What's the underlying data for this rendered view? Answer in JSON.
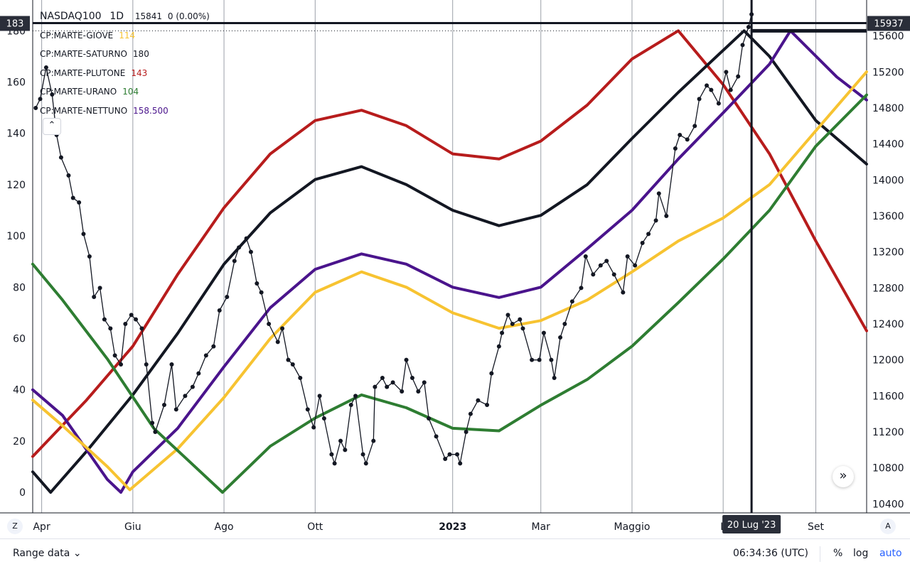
{
  "legend": {
    "symbol": "NASDAQ100",
    "interval": "1D",
    "price": "15841",
    "change": "0 (0.00%)",
    "indicators": [
      {
        "name": "CP:MARTE-GIOVE",
        "value": "114",
        "color": "#f7c331"
      },
      {
        "name": "CP:MARTE-SATURNO",
        "value": "180",
        "color": "#131722"
      },
      {
        "name": "CP:MARTE-PLUTONE",
        "value": "143",
        "color": "#b71c1c"
      },
      {
        "name": "CP:MARTE-URANO",
        "value": "104",
        "color": "#2e7d32"
      },
      {
        "name": "CP:MARTE-NETTUNO",
        "value": "158.500",
        "color": "#4a148c"
      }
    ],
    "collapse_icon": "chevron-up-icon"
  },
  "crosshair": {
    "left_label": "183",
    "right_label": "15937",
    "date_label": "20 Lug '23"
  },
  "bottom_bar": {
    "range_label": "Range data",
    "time": "06:34:36 (UTC)",
    "percent_label": "%",
    "log_label": "log",
    "auto_label": "auto",
    "left_button": "Z",
    "right_button": "A"
  },
  "chart_data": {
    "type": "line",
    "x_axis_labels": [
      "Apr",
      "Giu",
      "Ago",
      "Ott",
      "2023",
      "Mar",
      "Maggio",
      "L",
      "Set"
    ],
    "left_axis": {
      "ticks": [
        0,
        20,
        40,
        60,
        80,
        100,
        120,
        140,
        160,
        180
      ],
      "range": [
        -8,
        192
      ]
    },
    "right_axis": {
      "ticks": [
        10400,
        10800,
        11200,
        11600,
        12000,
        12400,
        12800,
        13200,
        13600,
        14000,
        14400,
        14800,
        15200,
        15600
      ],
      "range": [
        10300,
        16000
      ]
    },
    "x_range": [
      "2022-03-26",
      "2023-10-05"
    ],
    "date_ticks": [
      "2022-04-01",
      "2022-06-01",
      "2022-08-01",
      "2022-10-01",
      "2023-01-01",
      "2023-03-01",
      "2023-05-01",
      "2023-07-01",
      "2023-09-01"
    ],
    "grid": true,
    "series": [
      {
        "name": "CP:MARTE-PLUTONE",
        "axis": "left",
        "color": "#b71c1c",
        "points": [
          [
            "2022-03-26",
            14
          ],
          [
            "2022-05-01",
            36
          ],
          [
            "2022-06-01",
            57
          ],
          [
            "2022-07-01",
            85
          ],
          [
            "2022-08-01",
            111
          ],
          [
            "2022-09-01",
            132
          ],
          [
            "2022-10-01",
            145
          ],
          [
            "2022-11-01",
            149
          ],
          [
            "2022-12-01",
            143
          ],
          [
            "2023-01-01",
            132
          ],
          [
            "2023-02-01",
            130
          ],
          [
            "2023-03-01",
            137
          ],
          [
            "2023-04-01",
            151
          ],
          [
            "2023-05-01",
            169
          ],
          [
            "2023-06-01",
            180
          ],
          [
            "2023-07-01",
            159
          ],
          [
            "2023-08-01",
            132
          ],
          [
            "2023-09-01",
            98
          ],
          [
            "2023-10-05",
            63
          ]
        ]
      },
      {
        "name": "CP:MARTE-SATURNO",
        "axis": "left",
        "color": "#131722",
        "points": [
          [
            "2022-03-26",
            8
          ],
          [
            "2022-04-07",
            0
          ],
          [
            "2022-05-01",
            16
          ],
          [
            "2022-06-01",
            38
          ],
          [
            "2022-07-01",
            62
          ],
          [
            "2022-08-01",
            89
          ],
          [
            "2022-09-01",
            109
          ],
          [
            "2022-10-01",
            122
          ],
          [
            "2022-11-01",
            127
          ],
          [
            "2022-12-01",
            120
          ],
          [
            "2023-01-01",
            110
          ],
          [
            "2023-02-01",
            104
          ],
          [
            "2023-03-01",
            108
          ],
          [
            "2023-04-01",
            120
          ],
          [
            "2023-05-01",
            138
          ],
          [
            "2023-06-01",
            156
          ],
          [
            "2023-07-15",
            180
          ],
          [
            "2023-08-01",
            170
          ],
          [
            "2023-09-01",
            145
          ],
          [
            "2023-10-05",
            128
          ]
        ]
      },
      {
        "name": "CP:MARTE-NETTUNO",
        "axis": "left",
        "color": "#4a148c",
        "points": [
          [
            "2022-03-26",
            40
          ],
          [
            "2022-04-15",
            30
          ],
          [
            "2022-05-15",
            5
          ],
          [
            "2022-05-24",
            0
          ],
          [
            "2022-06-01",
            8
          ],
          [
            "2022-07-01",
            25
          ],
          [
            "2022-08-01",
            49
          ],
          [
            "2022-09-01",
            72
          ],
          [
            "2022-10-01",
            87
          ],
          [
            "2022-11-01",
            93
          ],
          [
            "2022-12-01",
            89
          ],
          [
            "2023-01-01",
            80
          ],
          [
            "2023-02-01",
            76
          ],
          [
            "2023-03-01",
            80
          ],
          [
            "2023-04-01",
            95
          ],
          [
            "2023-05-01",
            110
          ],
          [
            "2023-06-01",
            130
          ],
          [
            "2023-07-01",
            148
          ],
          [
            "2023-08-01",
            167
          ],
          [
            "2023-08-15",
            180
          ],
          [
            "2023-09-15",
            162
          ],
          [
            "2023-10-05",
            153
          ]
        ]
      },
      {
        "name": "CP:MARTE-GIOVE",
        "axis": "left",
        "color": "#f7c331",
        "points": [
          [
            "2022-03-26",
            36
          ],
          [
            "2022-04-15",
            26
          ],
          [
            "2022-05-15",
            10
          ],
          [
            "2022-05-30",
            1
          ],
          [
            "2022-07-01",
            17
          ],
          [
            "2022-08-01",
            37
          ],
          [
            "2022-09-01",
            60
          ],
          [
            "2022-10-01",
            78
          ],
          [
            "2022-11-01",
            86
          ],
          [
            "2022-12-01",
            80
          ],
          [
            "2023-01-01",
            70
          ],
          [
            "2023-02-01",
            64
          ],
          [
            "2023-03-01",
            67
          ],
          [
            "2023-04-01",
            75
          ],
          [
            "2023-05-01",
            86
          ],
          [
            "2023-06-01",
            98
          ],
          [
            "2023-07-01",
            107
          ],
          [
            "2023-08-01",
            120
          ],
          [
            "2023-09-01",
            141
          ],
          [
            "2023-10-05",
            164
          ]
        ]
      },
      {
        "name": "CP:MARTE-URANO",
        "axis": "left",
        "color": "#2e7d32",
        "points": [
          [
            "2022-03-26",
            89
          ],
          [
            "2022-04-15",
            75
          ],
          [
            "2022-05-15",
            52
          ],
          [
            "2022-06-15",
            25
          ],
          [
            "2022-07-31",
            0
          ],
          [
            "2022-09-01",
            18
          ],
          [
            "2022-10-01",
            29
          ],
          [
            "2022-11-01",
            38
          ],
          [
            "2022-12-01",
            33
          ],
          [
            "2023-01-01",
            25
          ],
          [
            "2023-02-01",
            24
          ],
          [
            "2023-03-01",
            34
          ],
          [
            "2023-04-01",
            44
          ],
          [
            "2023-05-01",
            57
          ],
          [
            "2023-06-01",
            74
          ],
          [
            "2023-07-01",
            91
          ],
          [
            "2023-08-01",
            110
          ],
          [
            "2023-09-01",
            135
          ],
          [
            "2023-10-05",
            155
          ]
        ]
      },
      {
        "name": "NASDAQ100",
        "axis": "right",
        "color": "#131722",
        "markers": true,
        "points": [
          [
            "2022-03-28",
            14800
          ],
          [
            "2022-03-31",
            14900
          ],
          [
            "2022-04-04",
            15250
          ],
          [
            "2022-04-08",
            14950
          ],
          [
            "2022-04-11",
            14500
          ],
          [
            "2022-04-14",
            14250
          ],
          [
            "2022-04-19",
            14050
          ],
          [
            "2022-04-22",
            13800
          ],
          [
            "2022-04-26",
            13750
          ],
          [
            "2022-04-29",
            13400
          ],
          [
            "2022-05-03",
            13150
          ],
          [
            "2022-05-06",
            12700
          ],
          [
            "2022-05-10",
            12800
          ],
          [
            "2022-05-13",
            12450
          ],
          [
            "2022-05-17",
            12350
          ],
          [
            "2022-05-20",
            12050
          ],
          [
            "2022-05-24",
            11950
          ],
          [
            "2022-05-27",
            12400
          ],
          [
            "2022-05-31",
            12500
          ],
          [
            "2022-06-03",
            12450
          ],
          [
            "2022-06-07",
            12350
          ],
          [
            "2022-06-10",
            11950
          ],
          [
            "2022-06-14",
            11300
          ],
          [
            "2022-06-16",
            11200
          ],
          [
            "2022-06-22",
            11500
          ],
          [
            "2022-06-27",
            11950
          ],
          [
            "2022-06-30",
            11450
          ],
          [
            "2022-07-06",
            11600
          ],
          [
            "2022-07-11",
            11700
          ],
          [
            "2022-07-15",
            11850
          ],
          [
            "2022-07-20",
            12050
          ],
          [
            "2022-07-25",
            12150
          ],
          [
            "2022-07-29",
            12550
          ],
          [
            "2022-08-03",
            12700
          ],
          [
            "2022-08-08",
            13100
          ],
          [
            "2022-08-11",
            13250
          ],
          [
            "2022-08-16",
            13350
          ],
          [
            "2022-08-19",
            13200
          ],
          [
            "2022-08-23",
            12850
          ],
          [
            "2022-08-26",
            12750
          ],
          [
            "2022-08-31",
            12400
          ],
          [
            "2022-09-06",
            12200
          ],
          [
            "2022-09-09",
            12350
          ],
          [
            "2022-09-13",
            12000
          ],
          [
            "2022-09-16",
            11950
          ],
          [
            "2022-09-21",
            11800
          ],
          [
            "2022-09-26",
            11450
          ],
          [
            "2022-09-30",
            11250
          ],
          [
            "2022-10-04",
            11600
          ],
          [
            "2022-10-07",
            11350
          ],
          [
            "2022-10-12",
            10950
          ],
          [
            "2022-10-14",
            10850
          ],
          [
            "2022-10-18",
            11100
          ],
          [
            "2022-10-21",
            11000
          ],
          [
            "2022-10-25",
            11500
          ],
          [
            "2022-10-28",
            11600
          ],
          [
            "2022-11-02",
            10950
          ],
          [
            "2022-11-04",
            10850
          ],
          [
            "2022-11-09",
            11100
          ],
          [
            "2022-11-10",
            11700
          ],
          [
            "2022-11-15",
            11800
          ],
          [
            "2022-11-18",
            11700
          ],
          [
            "2022-11-22",
            11750
          ],
          [
            "2022-11-28",
            11650
          ],
          [
            "2022-12-01",
            12000
          ],
          [
            "2022-12-05",
            11800
          ],
          [
            "2022-12-09",
            11650
          ],
          [
            "2022-12-13",
            11750
          ],
          [
            "2022-12-16",
            11350
          ],
          [
            "2022-12-21",
            11150
          ],
          [
            "2022-12-27",
            10900
          ],
          [
            "2022-12-30",
            10950
          ],
          [
            "2023-01-04",
            10950
          ],
          [
            "2023-01-06",
            10850
          ],
          [
            "2023-01-10",
            11200
          ],
          [
            "2023-01-13",
            11400
          ],
          [
            "2023-01-18",
            11550
          ],
          [
            "2023-01-24",
            11500
          ],
          [
            "2023-01-27",
            11850
          ],
          [
            "2023-02-01",
            12150
          ],
          [
            "2023-02-03",
            12300
          ],
          [
            "2023-02-07",
            12500
          ],
          [
            "2023-02-10",
            12400
          ],
          [
            "2023-02-15",
            12450
          ],
          [
            "2023-02-17",
            12350
          ],
          [
            "2023-02-23",
            12000
          ],
          [
            "2023-02-28",
            12000
          ],
          [
            "2023-03-03",
            12300
          ],
          [
            "2023-03-08",
            12000
          ],
          [
            "2023-03-10",
            11800
          ],
          [
            "2023-03-14",
            12250
          ],
          [
            "2023-03-17",
            12400
          ],
          [
            "2023-03-22",
            12650
          ],
          [
            "2023-03-28",
            12800
          ],
          [
            "2023-03-31",
            13150
          ],
          [
            "2023-04-05",
            12950
          ],
          [
            "2023-04-10",
            13050
          ],
          [
            "2023-04-14",
            13100
          ],
          [
            "2023-04-19",
            12950
          ],
          [
            "2023-04-25",
            12750
          ],
          [
            "2023-04-28",
            13150
          ],
          [
            "2023-05-03",
            13050
          ],
          [
            "2023-05-08",
            13300
          ],
          [
            "2023-05-12",
            13400
          ],
          [
            "2023-05-17",
            13550
          ],
          [
            "2023-05-19",
            13850
          ],
          [
            "2023-05-24",
            13600
          ],
          [
            "2023-05-30",
            14350
          ],
          [
            "2023-06-02",
            14500
          ],
          [
            "2023-06-07",
            14450
          ],
          [
            "2023-06-12",
            14600
          ],
          [
            "2023-06-15",
            14900
          ],
          [
            "2023-06-20",
            15050
          ],
          [
            "2023-06-23",
            15000
          ],
          [
            "2023-06-28",
            14850
          ],
          [
            "2023-07-03",
            15200
          ],
          [
            "2023-07-06",
            15000
          ],
          [
            "2023-07-11",
            15150
          ],
          [
            "2023-07-14",
            15500
          ],
          [
            "2023-07-18",
            15700
          ],
          [
            "2023-07-20",
            15841
          ]
        ]
      }
    ]
  }
}
